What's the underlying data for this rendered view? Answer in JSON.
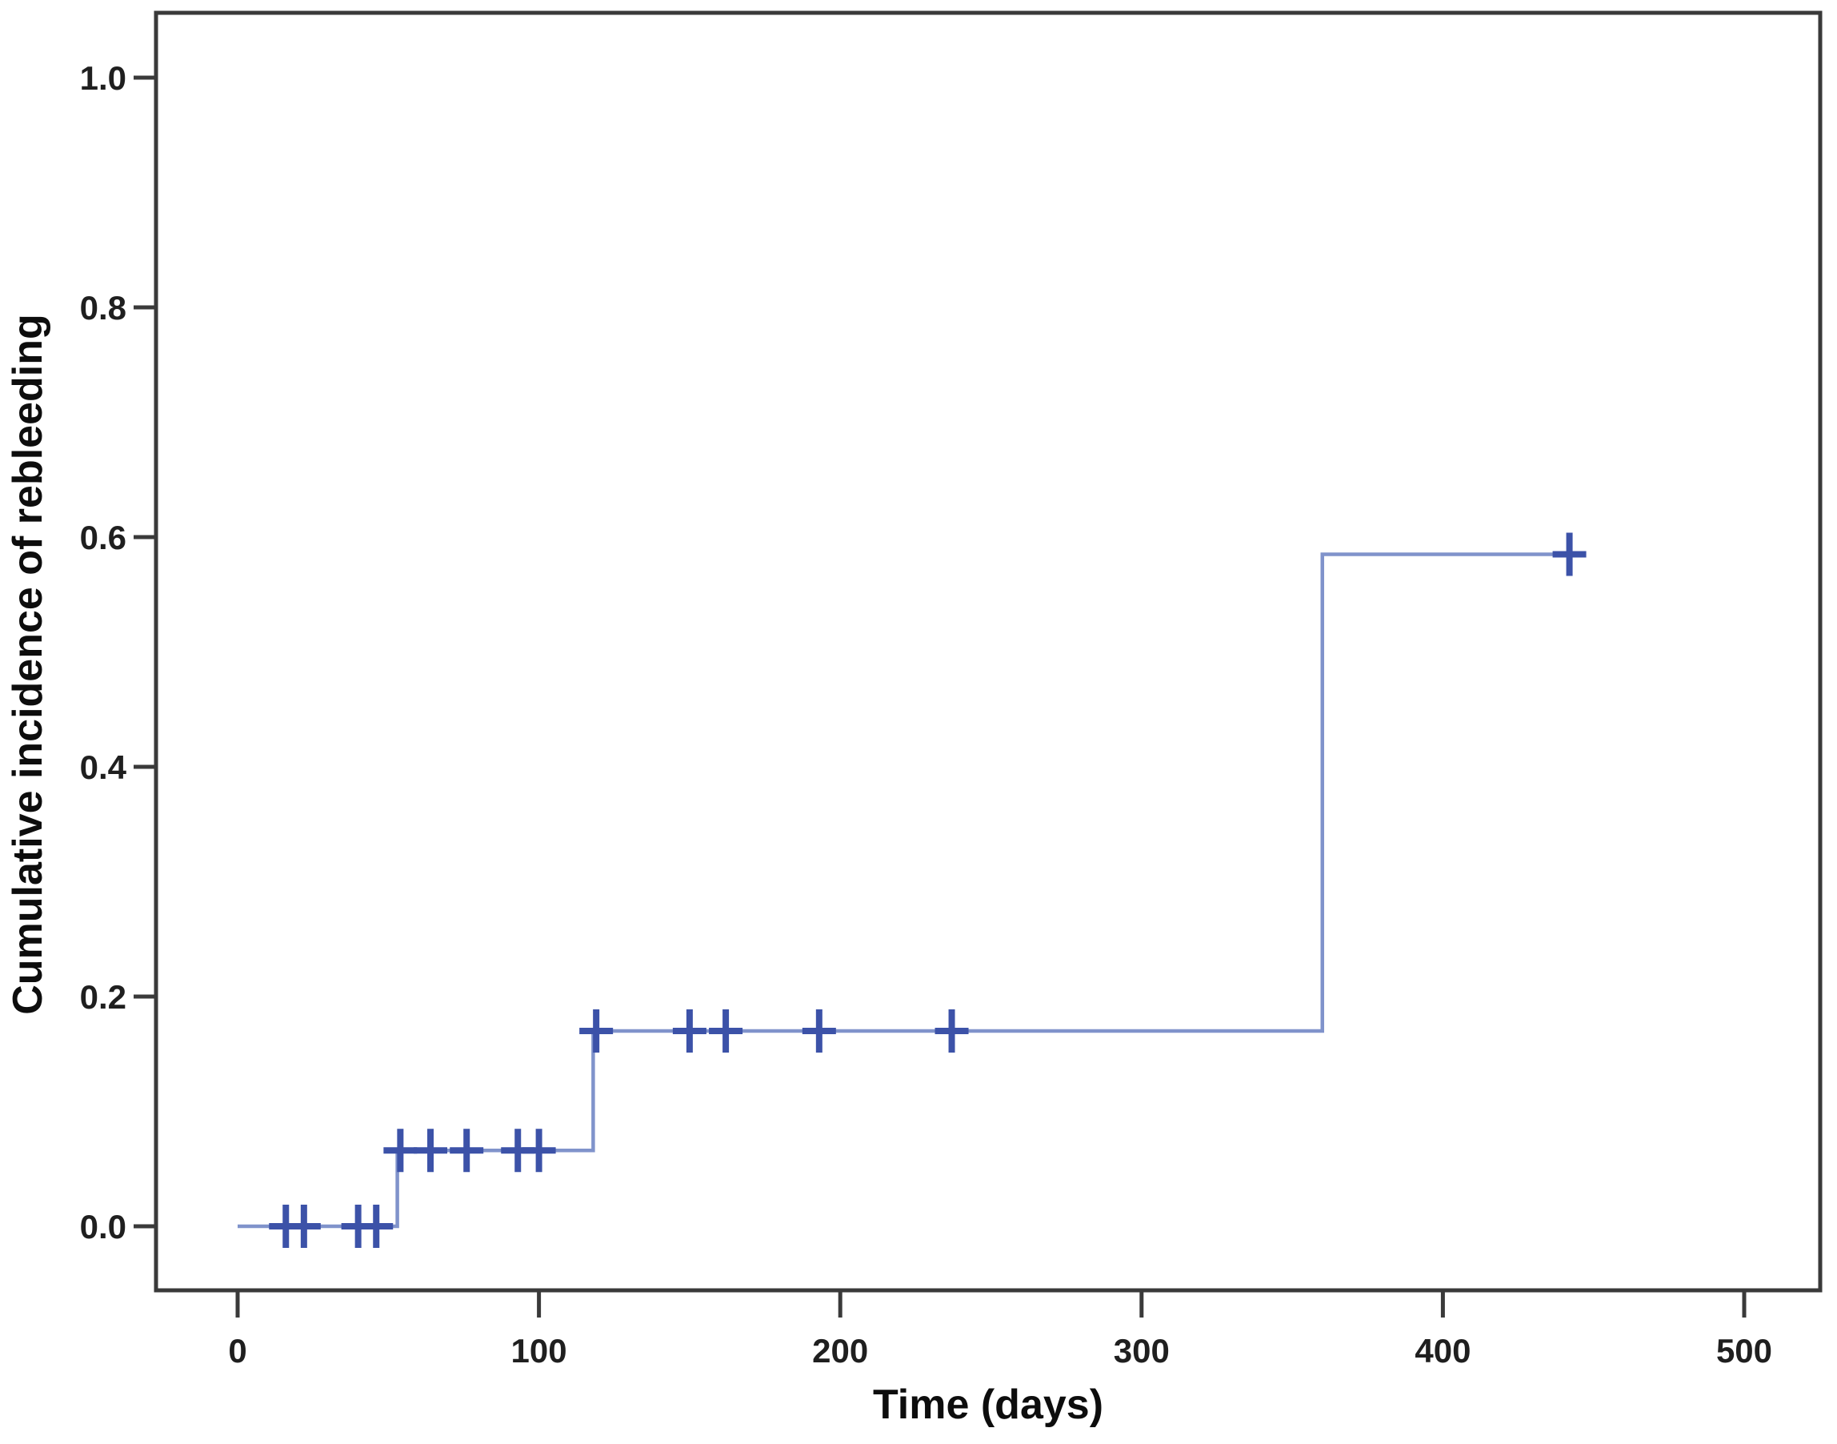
{
  "chart_data": {
    "type": "line",
    "subtype": "step-cumulative-incidence",
    "title": "",
    "xlabel": "Time (days)",
    "ylabel": "Cumulative incidence of rebleeding",
    "xlim": [
      -25,
      525
    ],
    "ylim": [
      -0.05,
      1.05
    ],
    "grid": false,
    "legend": null,
    "x_ticks": [
      {
        "label": "0",
        "value": 0
      },
      {
        "label": "100",
        "value": 100
      },
      {
        "label": "200",
        "value": 200
      },
      {
        "label": "300",
        "value": 300
      },
      {
        "label": "400",
        "value": 400
      },
      {
        "label": "500",
        "value": 500
      }
    ],
    "y_ticks": [
      {
        "label": "0.0",
        "value": 0.0
      },
      {
        "label": "0.2",
        "value": 0.2
      },
      {
        "label": "0.4",
        "value": 0.4
      },
      {
        "label": "0.6",
        "value": 0.6
      },
      {
        "label": "0.8",
        "value": 0.8
      },
      {
        "label": "1.0",
        "value": 1.0
      }
    ],
    "series": [
      {
        "name": "cumulative-incidence-of-rebleeding",
        "line_color": "#8093cb",
        "censor_color": "#3c52a8",
        "step_points": [
          [
            0,
            0.0
          ],
          [
            53,
            0.0
          ],
          [
            53,
            0.066
          ],
          [
            118,
            0.066
          ],
          [
            118,
            0.17
          ],
          [
            360,
            0.17
          ],
          [
            360,
            0.585
          ],
          [
            446,
            0.585
          ]
        ],
        "censor_marks": [
          [
            16,
            0.0
          ],
          [
            22,
            0.0
          ],
          [
            40,
            0.0
          ],
          [
            46,
            0.0
          ],
          [
            54,
            0.066
          ],
          [
            64,
            0.066
          ],
          [
            76,
            0.066
          ],
          [
            93,
            0.066
          ],
          [
            100,
            0.066
          ],
          [
            119,
            0.17
          ],
          [
            150,
            0.17
          ],
          [
            162,
            0.17
          ],
          [
            193,
            0.17
          ],
          [
            237,
            0.17
          ],
          [
            442,
            0.585
          ]
        ]
      }
    ]
  },
  "frame_color": "#3a3a3a",
  "background_color": "#ffffff"
}
